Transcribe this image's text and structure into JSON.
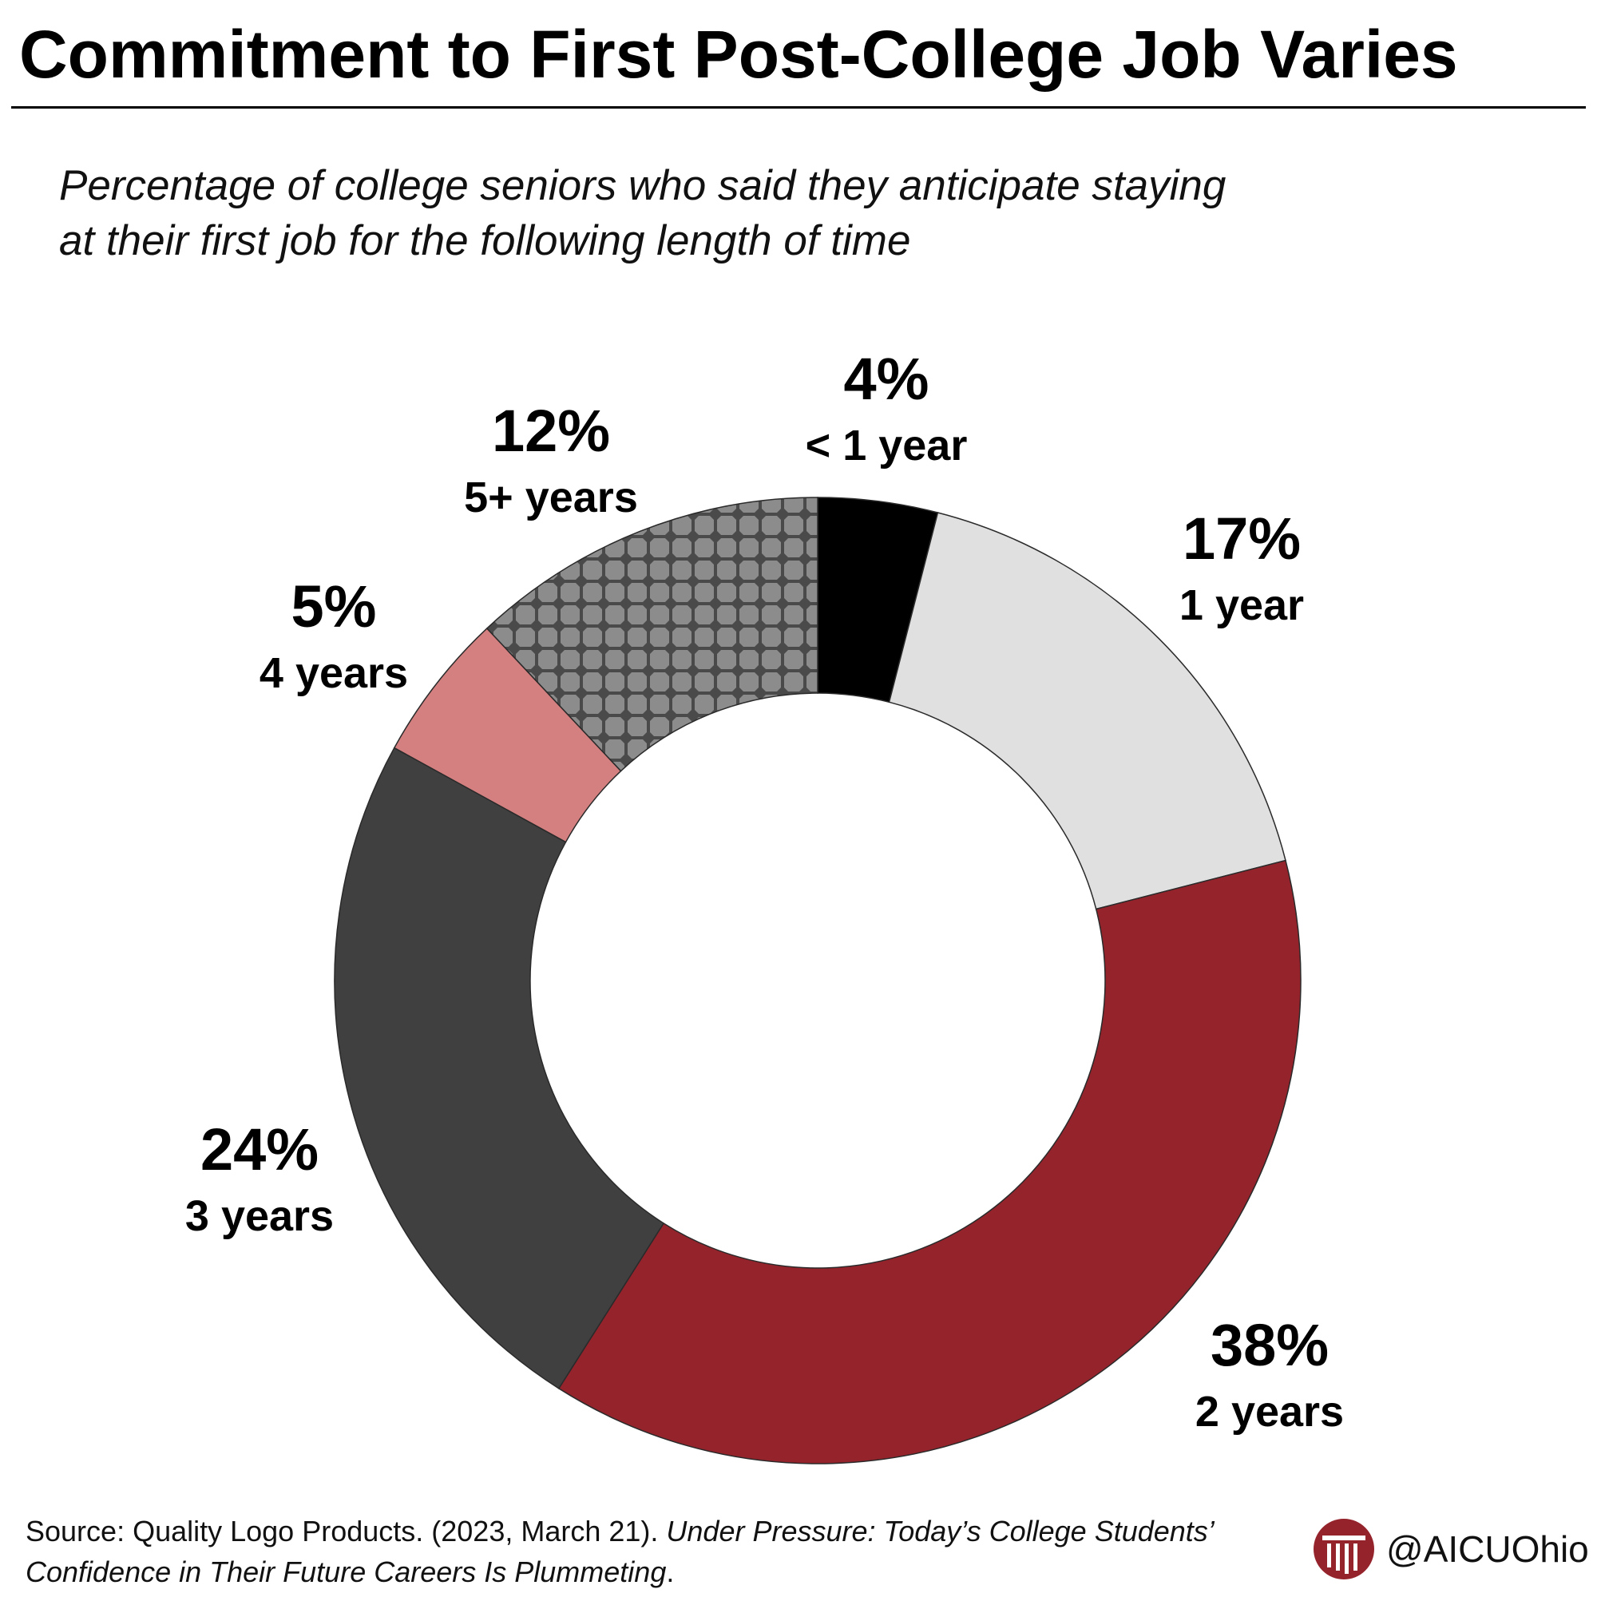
{
  "title": "Commitment to First Post-College Job Varies",
  "subtitle": "Percentage of college seniors who said they anticipate staying at their first job for the following length of time",
  "chart_data": {
    "type": "pie",
    "variant": "donut",
    "start": "12 o'clock, clockwise",
    "slices": [
      {
        "label": "< 1 year",
        "value": 4,
        "value_label": "4%",
        "color": "#000000",
        "pattern": null
      },
      {
        "label": "1 year",
        "value": 17,
        "value_label": "17%",
        "color": "#e0e0e0",
        "pattern": null
      },
      {
        "label": "2 years",
        "value": 38,
        "value_label": "38%",
        "color": "#95232c",
        "pattern": null
      },
      {
        "label": "3 years",
        "value": 24,
        "value_label": "24%",
        "color": "#404040",
        "pattern": null
      },
      {
        "label": "4 years",
        "value": 5,
        "value_label": "5%",
        "color": "#d58080",
        "pattern": null
      },
      {
        "label": "5+ years",
        "value": 12,
        "value_label": "12%",
        "color": "#898989",
        "pattern": "checkered octagon pattern, dark grey on mid grey"
      }
    ]
  },
  "source": {
    "prefix": "Source: Quality Logo Products. (2023, March 21). ",
    "title_italic": "Under Pressure: Today’s College Students’ Confidence in Their Future Careers Is Plummeting",
    "suffix": "."
  },
  "branding": {
    "handle": "@AICUOhio",
    "logo_color": "#95232c",
    "logo_icon": "column-logo-icon"
  }
}
